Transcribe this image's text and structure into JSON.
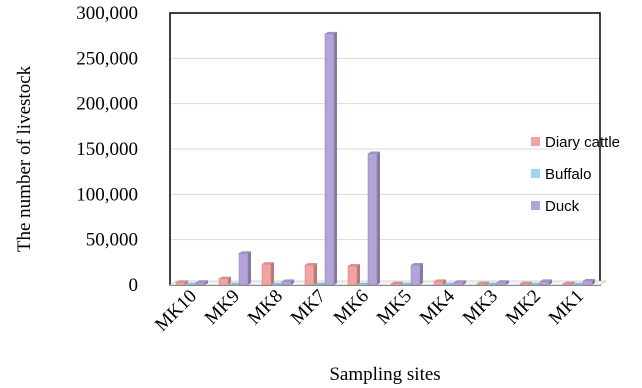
{
  "chart_data": {
    "type": "bar",
    "style": "3d-clustered",
    "xlabel": "Sampling sites",
    "ylabel": "The number of livestock",
    "ylim": [
      0,
      300000
    ],
    "yticks": [
      "0",
      "50,000",
      "100,000",
      "150,000",
      "200,000",
      "250,000",
      "300,000"
    ],
    "categories": [
      "MK10",
      "MK9",
      "MK8",
      "MK7",
      "MK6",
      "MK5",
      "MK4",
      "MK3",
      "MK2",
      "MK1"
    ],
    "series": [
      {
        "name": "Diary cattle",
        "color": "#f4a3a3",
        "values": [
          3000,
          7000,
          23000,
          22000,
          21000,
          1500,
          4000,
          1500,
          1500,
          1500
        ]
      },
      {
        "name": "Buffalo",
        "color": "#9fd3f3",
        "values": [
          300,
          300,
          300,
          300,
          300,
          300,
          300,
          300,
          300,
          300
        ]
      },
      {
        "name": "Duck",
        "color": "#b3a3d8",
        "values": [
          3000,
          35000,
          4000,
          277000,
          145000,
          22000,
          3000,
          3000,
          4000,
          4500
        ]
      }
    ],
    "grid": true,
    "legend": "right"
  }
}
